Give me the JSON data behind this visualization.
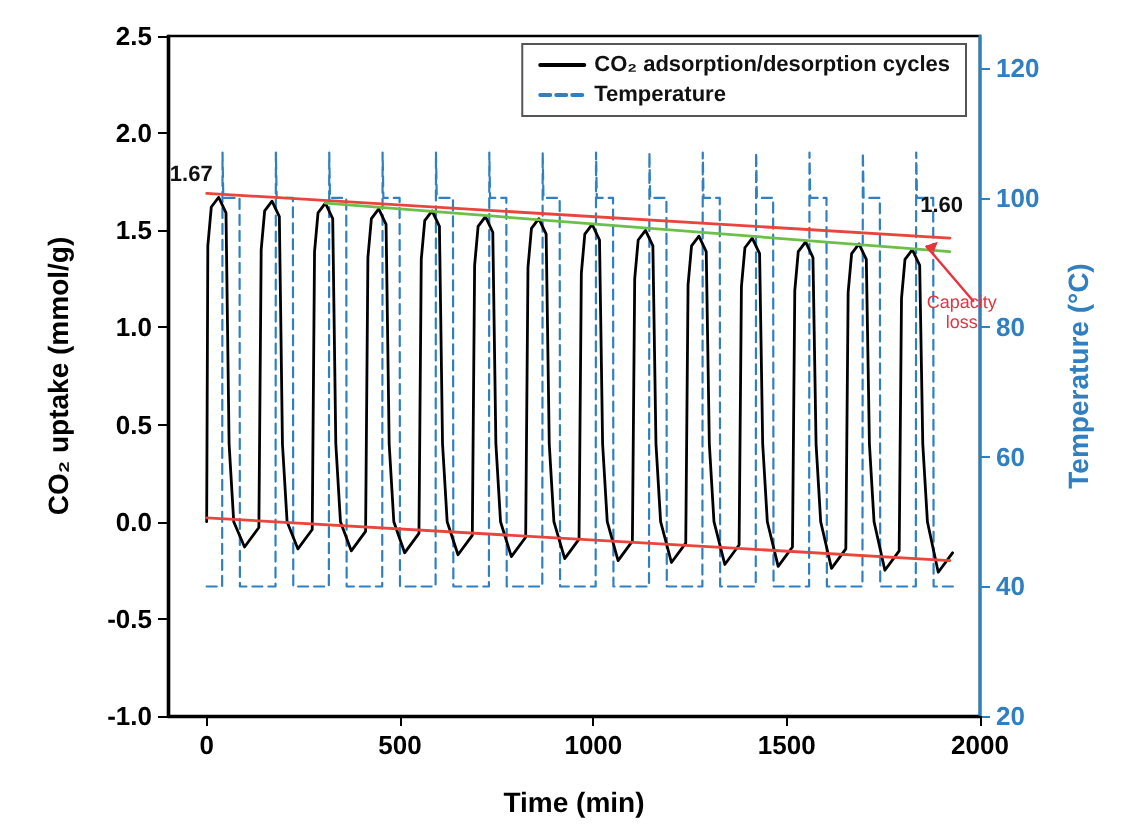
{
  "chart_data": {
    "type": "line",
    "xlabel": "Time (min)",
    "ylabel": "CO₂ uptake (mmol/g)",
    "y2label": "Temperature (°C)",
    "xlim": [
      -100,
      2000
    ],
    "xticks": [
      0,
      500,
      1000,
      1500,
      2000
    ],
    "ylim": [
      -1,
      2.5
    ],
    "yticks": [
      {
        "value": -1,
        "label": "-1.0"
      },
      {
        "value": -0.5,
        "label": "-0.5"
      },
      {
        "value": 0,
        "label": "0.0"
      },
      {
        "value": 0.5,
        "label": "0.5"
      },
      {
        "value": 1,
        "label": "1.0"
      },
      {
        "value": 1.5,
        "label": "1.5"
      },
      {
        "value": 2,
        "label": "2.0"
      },
      {
        "value": 2.5,
        "label": "2.5"
      }
    ],
    "y2lim": [
      20,
      125
    ],
    "y2ticks": [
      20,
      40,
      60,
      80,
      100,
      120
    ],
    "legend": "top right",
    "grid": false,
    "marker": "none",
    "series": [
      {
        "name": "CO₂ adsorption/desorption cycles",
        "color": "#000000",
        "line_style": "solid",
        "x": [
          0,
          3,
          12,
          31,
          50,
          58,
          70,
          98,
          135,
          138,
          141,
          150,
          169,
          188,
          196,
          208,
          236,
          273,
          276,
          279,
          288,
          307,
          326,
          334,
          346,
          374,
          411,
          414,
          417,
          426,
          445,
          464,
          472,
          484,
          512,
          549,
          552,
          555,
          564,
          583,
          602,
          610,
          622,
          650,
          687,
          690,
          693,
          702,
          721,
          740,
          748,
          760,
          788,
          825,
          828,
          831,
          840,
          859,
          878,
          886,
          898,
          926,
          963,
          966,
          969,
          978,
          997,
          1016,
          1024,
          1036,
          1064,
          1101,
          1104,
          1107,
          1116,
          1135,
          1154,
          1162,
          1174,
          1202,
          1239,
          1242,
          1245,
          1254,
          1273,
          1292,
          1300,
          1312,
          1340,
          1377,
          1380,
          1383,
          1392,
          1411,
          1430,
          1438,
          1450,
          1478,
          1515,
          1518,
          1521,
          1530,
          1549,
          1568,
          1576,
          1588,
          1616,
          1653,
          1656,
          1659,
          1668,
          1687,
          1706,
          1714,
          1726,
          1754,
          1791,
          1794,
          1797,
          1806,
          1825,
          1844,
          1852,
          1864,
          1892,
          1929
        ],
        "values": [
          0,
          1.42,
          1.62,
          1.67,
          1.59,
          0.4,
          0,
          -0.13,
          -0.03,
          -0.03,
          1.4,
          1.6,
          1.65,
          1.57,
          0.4,
          0,
          -0.14,
          -0.04,
          -0.04,
          1.39,
          1.59,
          1.64,
          1.56,
          0.4,
          0,
          -0.15,
          -0.05,
          -0.05,
          1.36,
          1.56,
          1.61,
          1.53,
          0.4,
          0,
          -0.16,
          -0.06,
          -0.06,
          1.35,
          1.55,
          1.6,
          1.52,
          0.4,
          0,
          -0.17,
          -0.07,
          -0.07,
          1.32,
          1.52,
          1.57,
          1.49,
          0.4,
          0,
          -0.18,
          -0.08,
          -0.08,
          1.31,
          1.51,
          1.56,
          1.48,
          0.4,
          0,
          -0.19,
          -0.09,
          -0.09,
          1.28,
          1.48,
          1.53,
          1.45,
          0.4,
          0,
          -0.2,
          -0.1,
          -0.1,
          1.25,
          1.45,
          1.5,
          1.42,
          0.4,
          0,
          -0.21,
          -0.11,
          -0.11,
          1.22,
          1.42,
          1.47,
          1.39,
          0.4,
          0,
          -0.22,
          -0.12,
          -0.12,
          1.21,
          1.41,
          1.46,
          1.38,
          0.4,
          0,
          -0.23,
          -0.13,
          -0.13,
          1.19,
          1.39,
          1.44,
          1.36,
          0.4,
          0,
          -0.24,
          -0.14,
          -0.14,
          1.18,
          1.38,
          1.43,
          1.35,
          0.4,
          0,
          -0.25,
          -0.15,
          -0.15,
          1.15,
          1.35,
          1.4,
          1.32,
          0.4,
          0,
          -0.26,
          -0.16
        ]
      },
      {
        "name": "Temperature",
        "color": "#2f7fc1",
        "line_style": "dashed",
        "axis": "y2",
        "x": [
          0,
          40,
          41,
          43,
          85,
          86,
          178,
          179,
          181,
          223,
          224,
          316,
          317,
          319,
          361,
          362,
          454,
          455,
          457,
          499,
          500,
          592,
          593,
          595,
          637,
          638,
          730,
          731,
          733,
          775,
          776,
          868,
          869,
          871,
          913,
          914,
          1006,
          1007,
          1009,
          1051,
          1052,
          1144,
          1145,
          1147,
          1189,
          1190,
          1282,
          1283,
          1285,
          1327,
          1328,
          1420,
          1421,
          1423,
          1465,
          1466,
          1558,
          1559,
          1561,
          1603,
          1604,
          1696,
          1697,
          1699,
          1741,
          1742,
          1834,
          1835,
          1837,
          1879,
          1880,
          1935
        ],
        "values": [
          40,
          40,
          107,
          100,
          100,
          40,
          40,
          107,
          100,
          100,
          40,
          40,
          107,
          100,
          100,
          40,
          40,
          107,
          100,
          100,
          40,
          40,
          107,
          100,
          100,
          40,
          40,
          107,
          100,
          100,
          40,
          40,
          107,
          100,
          100,
          40,
          40,
          107,
          100,
          100,
          40,
          40,
          107,
          100,
          100,
          40,
          40,
          107,
          100,
          100,
          40,
          40,
          107,
          100,
          100,
          40,
          40,
          107,
          100,
          100,
          40,
          40,
          107,
          100,
          100,
          40,
          40,
          107,
          100,
          100,
          40,
          40
        ]
      },
      {
        "color": "#e8453c",
        "line_style": "solid",
        "x": [
          0,
          1922
        ],
        "values": [
          1.69,
          1.46
        ]
      },
      {
        "color": "#6cbf4a",
        "line_style": "solid",
        "x": [
          307,
          1922
        ],
        "values": [
          1.64,
          1.39
        ]
      },
      {
        "color": "#e8453c",
        "line_style": "solid",
        "x": [
          0,
          1922
        ],
        "values": [
          0.02,
          -0.2
        ]
      }
    ],
    "annotations": [
      {
        "text": "1.67",
        "x": 31,
        "y": 1.67
      },
      {
        "text": "1.60",
        "x": 1880,
        "y": 1.52
      },
      {
        "text": "Capacity\nloss",
        "x": 1922,
        "y": 1.39
      }
    ]
  }
}
